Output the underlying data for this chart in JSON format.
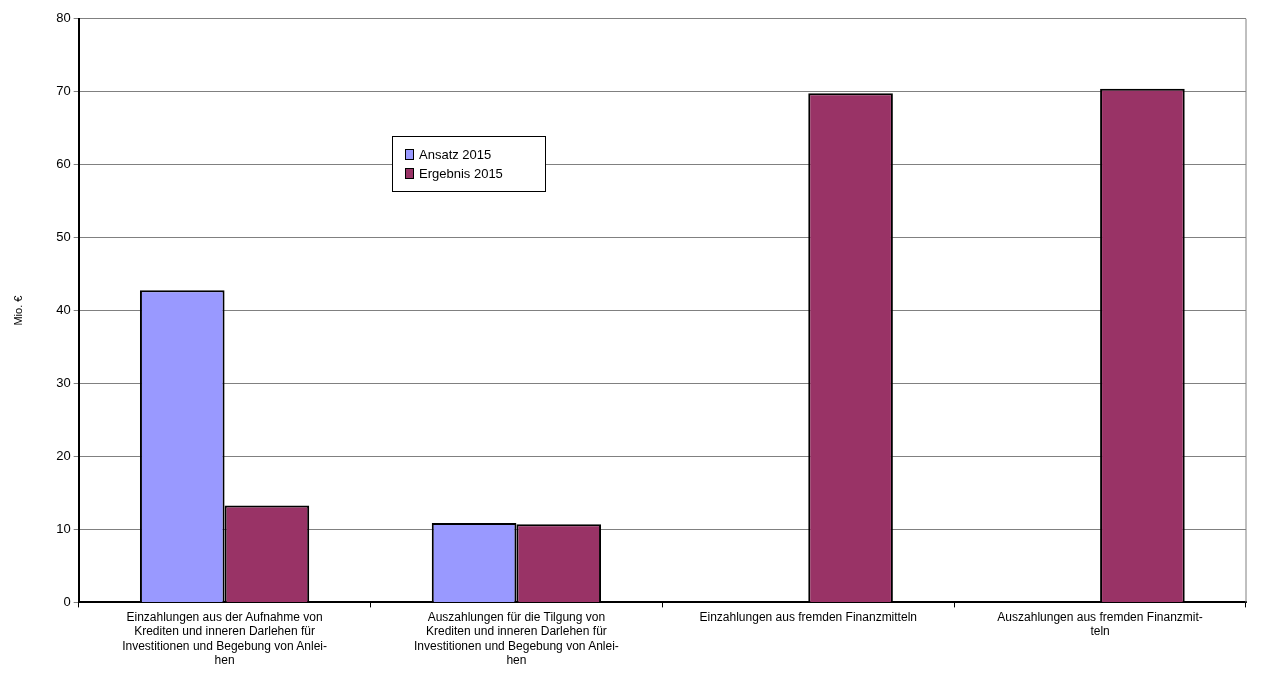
{
  "chart_data": {
    "type": "bar",
    "ylabel": "Mio. €",
    "categories": [
      "Einzahlungen aus der Aufnahme von\nKrediten und inneren Darlehen für\nInvestitionen und Begebung von Anlei-\nhen",
      "Auszahlungen für die Tilgung von\nKrediten und inneren Darlehen für\nInvestitionen und Begebung von Anlei-\nhen",
      "Einzahlungen aus fremden Finanzmitteln",
      "Auszahlungen aus fremden Finanzmit-\nteln"
    ],
    "series": [
      {
        "name": "Ansatz 2015",
        "color": "#9999ff",
        "values": [
          42.8,
          10.9,
          0,
          0
        ]
      },
      {
        "name": "Ergebnis 2015",
        "color": "#993366",
        "values": [
          13.3,
          10.7,
          69.8,
          70.4
        ]
      }
    ],
    "ylim": [
      0,
      80
    ],
    "yticks": [
      0,
      10,
      20,
      30,
      40,
      50,
      60,
      70,
      80
    ],
    "grid": "y",
    "legend": "top left"
  }
}
